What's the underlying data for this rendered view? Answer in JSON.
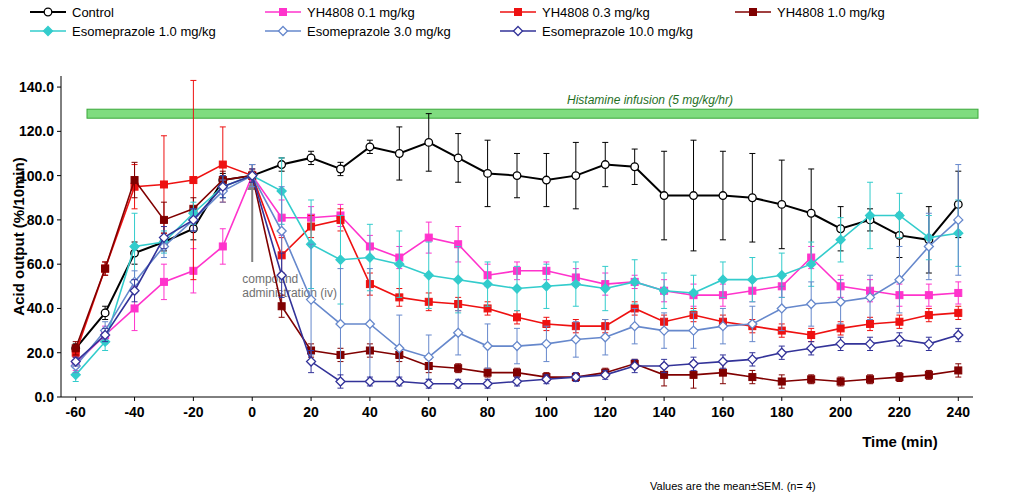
{
  "chart_data": {
    "type": "line",
    "x_label": "Time (min)",
    "y_label": "Acid output (%/10min)",
    "note": "Values are the mean±SEM. (n= 4)",
    "annotations": [
      {
        "text": "Histamine infusion (5 mg/kg/hr)"
      },
      {
        "text": "compound administration (iv)",
        "x": 0
      }
    ],
    "x": [
      -60,
      -50,
      -40,
      -30,
      -20,
      -10,
      0,
      10,
      20,
      30,
      40,
      50,
      60,
      70,
      80,
      90,
      100,
      110,
      120,
      130,
      140,
      150,
      160,
      170,
      180,
      190,
      200,
      210,
      220,
      230,
      240
    ],
    "xlim": [
      -65,
      245
    ],
    "xticks": [
      -60,
      -40,
      -20,
      0,
      20,
      40,
      60,
      80,
      100,
      120,
      140,
      160,
      180,
      200,
      220,
      240
    ],
    "ylim": [
      0,
      145
    ],
    "yticks": [
      {
        "value": 0,
        "label": "0.0"
      },
      {
        "value": 20,
        "label": "20.0"
      },
      {
        "value": 40,
        "label": "40.0"
      },
      {
        "value": 60,
        "label": "60.0"
      },
      {
        "value": 80,
        "label": "80.0"
      },
      {
        "value": 100,
        "label": "100.0"
      },
      {
        "value": 120,
        "label": "120.0"
      },
      {
        "value": 140,
        "label": "140.0"
      }
    ],
    "grid": false,
    "legend": "top",
    "series": [
      {
        "name": "Control",
        "color": "#000000",
        "marker": "circle-open",
        "values": [
          22,
          38,
          65,
          70,
          76,
          98,
          100,
          105,
          108,
          103,
          113,
          110,
          115,
          108,
          101,
          100,
          98,
          100,
          105,
          104,
          91,
          91,
          91,
          90,
          87,
          83,
          76,
          80,
          73,
          71,
          87
        ],
        "errors": [
          2,
          3,
          5,
          4,
          5,
          3,
          2,
          3,
          3,
          3,
          3,
          12,
          13,
          11,
          15,
          10,
          12,
          15,
          10,
          8,
          20,
          25,
          20,
          20,
          20,
          20,
          10,
          5,
          10,
          15,
          15
        ]
      },
      {
        "name": "YH4808 0.1 mg/kg",
        "color": "#ff33cc",
        "marker": "square",
        "values": [
          15,
          28,
          40,
          52,
          57,
          68,
          100,
          81,
          81,
          82,
          68,
          63,
          72,
          69,
          55,
          57,
          57,
          54,
          51,
          52,
          48,
          46,
          46,
          48,
          50,
          63,
          50,
          48,
          46,
          46,
          47
        ],
        "errors": [
          3,
          4,
          10,
          8,
          10,
          8,
          5,
          8,
          5,
          5,
          5,
          5,
          7,
          8,
          5,
          4,
          4,
          4,
          5,
          3,
          5,
          5,
          5,
          5,
          5,
          5,
          5,
          5,
          5,
          5,
          5
        ]
      },
      {
        "name": "YH4808 0.3 mg/kg",
        "color": "#ee1111",
        "marker": "square",
        "values": [
          20,
          58,
          95,
          96,
          98,
          105,
          100,
          64,
          77,
          80,
          51,
          45,
          43,
          42,
          40,
          36,
          33,
          32,
          32,
          40,
          34,
          37,
          34,
          32,
          30,
          28,
          31,
          33,
          34,
          37,
          38
        ],
        "errors": [
          2,
          3,
          10,
          22,
          45,
          17,
          5,
          8,
          5,
          5,
          5,
          4,
          4,
          3,
          3,
          3,
          3,
          3,
          3,
          3,
          3,
          3,
          3,
          3,
          3,
          3,
          3,
          3,
          3,
          3,
          3
        ]
      },
      {
        "name": "YH4808 1.0 mg/kg",
        "color": "#800000",
        "marker": "square",
        "values": [
          22,
          58,
          98,
          80,
          85,
          98,
          100,
          41,
          21,
          19,
          21,
          19,
          14,
          13,
          11,
          11,
          9,
          9,
          11,
          15,
          10,
          10,
          11,
          9,
          7,
          8,
          7,
          8,
          9,
          10,
          12
        ],
        "errors": [
          3,
          3,
          8,
          8,
          5,
          4,
          3,
          5,
          3,
          3,
          3,
          3,
          3,
          2,
          2,
          2,
          2,
          2,
          2,
          2,
          5,
          6,
          5,
          3,
          3,
          2,
          2,
          2,
          2,
          2,
          3
        ]
      },
      {
        "name": "Esomeprazole 1.0 mg/kg",
        "color": "#33cccc",
        "marker": "diamond",
        "values": [
          10,
          25,
          68,
          70,
          83,
          95,
          100,
          93,
          69,
          62,
          63,
          60,
          55,
          53,
          51,
          49,
          50,
          51,
          49,
          52,
          48,
          47,
          53,
          53,
          55,
          60,
          71,
          82,
          82,
          72,
          74
        ],
        "errors": [
          3,
          4,
          15,
          5,
          5,
          5,
          5,
          15,
          20,
          20,
          15,
          15,
          15,
          15,
          10,
          10,
          10,
          10,
          10,
          10,
          8,
          8,
          8,
          10,
          10,
          10,
          10,
          15,
          10,
          10,
          15
        ]
      },
      {
        "name": "Esomeprazole 3.0 mg/kg",
        "color": "#6688cc",
        "marker": "diamond-open",
        "values": [
          14,
          30,
          52,
          68,
          80,
          93,
          100,
          75,
          44,
          33,
          33,
          22,
          18,
          29,
          23,
          23,
          24,
          26,
          27,
          32,
          30,
          30,
          32,
          33,
          40,
          42,
          43,
          45,
          53,
          68,
          80
        ],
        "errors": [
          3,
          4,
          5,
          5,
          5,
          5,
          5,
          20,
          25,
          25,
          25,
          15,
          10,
          10,
          10,
          8,
          8,
          8,
          8,
          8,
          8,
          8,
          8,
          8,
          10,
          10,
          10,
          10,
          15,
          15,
          25
        ]
      },
      {
        "name": "Esomeprazole 10.0 mg/kg",
        "color": "#333399",
        "marker": "diamond-open",
        "values": [
          16,
          28,
          48,
          72,
          80,
          95,
          100,
          55,
          16,
          7,
          7,
          7,
          6,
          6,
          6,
          7,
          8,
          9,
          10,
          14,
          14,
          15,
          16,
          17,
          20,
          22,
          24,
          24,
          26,
          24,
          28
        ],
        "errors": [
          2,
          3,
          5,
          5,
          5,
          5,
          3,
          10,
          5,
          3,
          2,
          2,
          2,
          2,
          2,
          2,
          2,
          2,
          2,
          3,
          3,
          3,
          3,
          3,
          3,
          3,
          3,
          3,
          3,
          3,
          3
        ]
      }
    ]
  }
}
